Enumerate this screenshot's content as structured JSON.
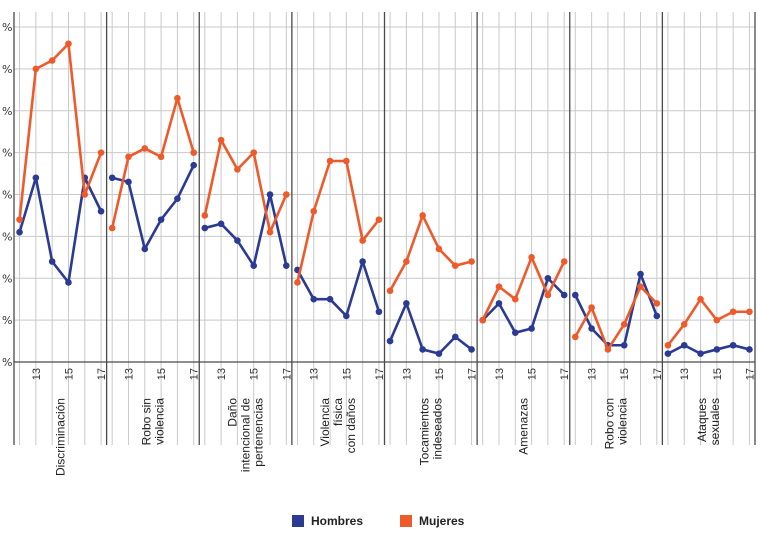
{
  "chart_data": {
    "type": "line",
    "y_tick_label": "%",
    "x_ticks": [
      "13",
      "15",
      "17"
    ],
    "x": [
      12,
      13,
      14,
      15,
      16,
      17
    ],
    "ylim": [
      0,
      80
    ],
    "grid": true,
    "legend_position": "bottom",
    "categories": [
      {
        "label": [
          "Discriminación"
        ],
        "hombres": [
          31,
          44,
          24,
          19,
          44,
          36
        ],
        "mujeres": [
          34,
          70,
          72,
          76,
          40,
          50
        ]
      },
      {
        "label": [
          "Robo sin",
          "violencia"
        ],
        "hombres": [
          44,
          43,
          27,
          34,
          39,
          47
        ],
        "mujeres": [
          32,
          49,
          51,
          49,
          63,
          50
        ]
      },
      {
        "label": [
          "Daño",
          "intencional de",
          "pertenencias"
        ],
        "hombres": [
          32,
          33,
          29,
          23,
          40,
          23
        ],
        "mujeres": [
          35,
          53,
          46,
          50,
          31,
          40
        ]
      },
      {
        "label": [
          "Violencia",
          "física",
          "con daños"
        ],
        "hombres": [
          22,
          15,
          15,
          11,
          24,
          12
        ],
        "mujeres": [
          19,
          36,
          48,
          48,
          29,
          34
        ]
      },
      {
        "label": [
          "Tocamientos",
          "indeseados"
        ],
        "hombres": [
          5,
          14,
          3,
          2,
          6,
          3
        ],
        "mujeres": [
          17,
          24,
          35,
          27,
          23,
          24
        ]
      },
      {
        "label": [
          "Amenazas"
        ],
        "hombres": [
          10,
          14,
          7,
          8,
          20,
          16
        ],
        "mujeres": [
          10,
          18,
          15,
          25,
          16,
          24
        ]
      },
      {
        "label": [
          "Robo con",
          "violencia"
        ],
        "hombres": [
          16,
          8,
          4,
          4,
          21,
          11
        ],
        "mujeres": [
          6,
          13,
          3,
          9,
          18,
          14
        ]
      },
      {
        "label": [
          "Ataques",
          "sexuales"
        ],
        "hombres": [
          2,
          4,
          2,
          3,
          4,
          3
        ],
        "mujeres": [
          4,
          9,
          15,
          10,
          12,
          12
        ]
      }
    ],
    "series": [
      {
        "name": "Hombres",
        "key": "hombres",
        "color": "#2b3a92"
      },
      {
        "name": "Mujeres",
        "key": "mujeres",
        "color": "#ee5a2a"
      }
    ]
  }
}
